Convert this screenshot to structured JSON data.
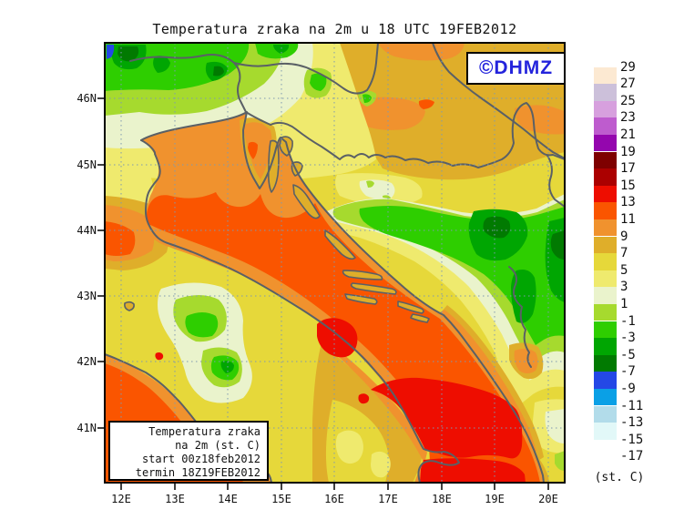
{
  "title": "Temperatura zraka na 2m u 18 UTC 19FEB2012",
  "watermark": {
    "label": "©DHMZ"
  },
  "legend_box": {
    "lines": [
      "Temperatura zraka",
      "na 2m (st. C)",
      "start 00z18feb2012",
      "termin 18Z19FEB2012"
    ]
  },
  "colorbar": {
    "unit_label": "(st. C)",
    "entries": [
      {
        "label": "29",
        "color": "#FCE9D2"
      },
      {
        "label": "27",
        "color": "#CCC0DA"
      },
      {
        "label": "25",
        "color": "#D7A0DE"
      },
      {
        "label": "23",
        "color": "#BE5CCE"
      },
      {
        "label": "21",
        "color": "#9406AE"
      },
      {
        "label": "19",
        "color": "#7E0000"
      },
      {
        "label": "17",
        "color": "#AB0000"
      },
      {
        "label": "15",
        "color": "#EE0D00"
      },
      {
        "label": "13",
        "color": "#FA5500"
      },
      {
        "label": "11",
        "color": "#F0922E"
      },
      {
        "label": "9",
        "color": "#DFAE2A"
      },
      {
        "label": "7",
        "color": "#E6D83A"
      },
      {
        "label": "5",
        "color": "#EFEA6E"
      },
      {
        "label": "3",
        "color": "#EAF3CC"
      },
      {
        "label": "1",
        "color": "#A6DA2E"
      },
      {
        "label": "-1",
        "color": "#2ECE00"
      },
      {
        "label": "-3",
        "color": "#00A602"
      },
      {
        "label": "-5",
        "color": "#017A01"
      },
      {
        "label": "-7",
        "color": "#2448E6"
      },
      {
        "label": "-9",
        "color": "#0AA0E6"
      },
      {
        "label": "-11",
        "color": "#B2DCEA"
      },
      {
        "label": "-13",
        "color": "#E2F8F8"
      },
      {
        "label": "-15",
        "color": "#FFFFFF"
      },
      {
        "label": "-17",
        "color": "#FFFFFF"
      }
    ]
  },
  "axes": {
    "lat_labels": [
      "46N",
      "45N",
      "44N",
      "43N",
      "42N",
      "41N"
    ],
    "lon_labels": [
      "12E",
      "13E",
      "14E",
      "15E",
      "16E",
      "17E",
      "18E",
      "19E",
      "20E"
    ]
  },
  "map_palette": {
    "red": "#EE0D00",
    "orange_red": "#FA5500",
    "orange": "#F0922E",
    "goldenrod": "#DFAE2A",
    "yellow": "#E6D83A",
    "pale_yellow": "#EFEA6E",
    "pale_green": "#EAF3CC",
    "yellow_green": "#A6DA2E",
    "green": "#2ECE00",
    "mid_green": "#00A602",
    "dark_green": "#017A01",
    "blue": "#2448E6",
    "coastline": "#5A6066",
    "grid": "#7E99B0",
    "frame": "#000000"
  }
}
